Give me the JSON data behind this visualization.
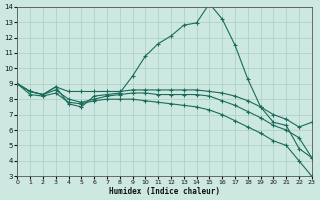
{
  "bg_color": "#cce8e0",
  "line_color": "#1a6b5a",
  "grid_color": "#aaccc4",
  "xlabel": "Humidex (Indice chaleur)",
  "xlim": [
    0,
    23
  ],
  "ylim": [
    3,
    14
  ],
  "yticks": [
    3,
    4,
    5,
    6,
    7,
    8,
    9,
    10,
    11,
    12,
    13,
    14
  ],
  "xticks": [
    0,
    1,
    2,
    3,
    4,
    5,
    6,
    7,
    8,
    9,
    10,
    11,
    12,
    13,
    14,
    15,
    16,
    17,
    18,
    19,
    20,
    21,
    22,
    23
  ],
  "series1": [
    9.0,
    8.5,
    8.3,
    8.8,
    7.7,
    7.5,
    8.2,
    8.3,
    8.4,
    9.5,
    10.8,
    11.6,
    12.1,
    12.8,
    12.95,
    14.2,
    13.2,
    11.5,
    9.3,
    7.5,
    6.5,
    6.3,
    4.8,
    4.2
  ],
  "series2": [
    9.0,
    8.5,
    8.3,
    8.8,
    8.5,
    8.5,
    8.5,
    8.5,
    8.5,
    8.6,
    8.6,
    8.6,
    8.6,
    8.6,
    8.6,
    8.5,
    8.4,
    8.2,
    7.9,
    7.5,
    7.0,
    6.7,
    6.2,
    6.5
  ],
  "series3": [
    9.0,
    8.5,
    8.3,
    8.6,
    8.0,
    7.8,
    8.0,
    8.2,
    8.3,
    8.4,
    8.4,
    8.3,
    8.3,
    8.3,
    8.3,
    8.2,
    7.9,
    7.6,
    7.2,
    6.8,
    6.3,
    6.0,
    5.5,
    4.2
  ],
  "series4": [
    9.0,
    8.3,
    8.2,
    8.4,
    7.8,
    7.7,
    7.9,
    8.0,
    8.0,
    8.0,
    7.9,
    7.8,
    7.7,
    7.6,
    7.5,
    7.3,
    7.0,
    6.6,
    6.2,
    5.8,
    5.3,
    5.0,
    4.0,
    3.0
  ]
}
